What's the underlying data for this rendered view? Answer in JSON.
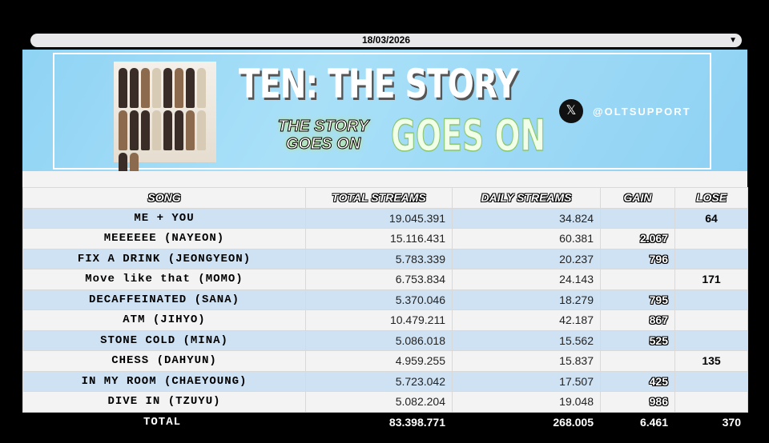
{
  "date_select": {
    "value": "18/03/2026"
  },
  "banner": {
    "title": "TEN: THE STORY",
    "subtitle": "GOES ON",
    "album_logo": "TWICE SPECIAL ALBUM THE STORY GOES ON",
    "social_icon": "x-logo-icon",
    "handle": "@OLTSUPPORT"
  },
  "table": {
    "headers": [
      "SONG",
      "TOTAL STREAMS",
      "DAILY STREAMS",
      "GAIN",
      "LOSE"
    ],
    "rows": [
      {
        "song": "ME + YOU",
        "total": "19.045.391",
        "daily": "34.824",
        "gain": "",
        "lose": "64"
      },
      {
        "song": "MEEEEEE (NAYEON)",
        "total": "15.116.431",
        "daily": "60.381",
        "gain": "2.067",
        "lose": ""
      },
      {
        "song": "FIX A DRINK (JEONGYEON)",
        "total": "5.783.339",
        "daily": "20.237",
        "gain": "796",
        "lose": ""
      },
      {
        "song": "Move like that (MOMO)",
        "total": "6.753.834",
        "daily": "24.143",
        "gain": "",
        "lose": "171"
      },
      {
        "song": "DECAFFEINATED (SANA)",
        "total": "5.370.046",
        "daily": "18.279",
        "gain": "795",
        "lose": ""
      },
      {
        "song": "ATM (JIHYO)",
        "total": "10.479.211",
        "daily": "42.187",
        "gain": "867",
        "lose": ""
      },
      {
        "song": "STONE COLD (MINA)",
        "total": "5.086.018",
        "daily": "15.562",
        "gain": "525",
        "lose": ""
      },
      {
        "song": "CHESS (DAHYUN)",
        "total": "4.959.255",
        "daily": "15.837",
        "gain": "",
        "lose": "135"
      },
      {
        "song": "IN MY ROOM (CHAEYOUNG)",
        "total": "5.723.042",
        "daily": "17.507",
        "gain": "425",
        "lose": ""
      },
      {
        "song": "DIVE IN (TZUYU)",
        "total": "5.082.204",
        "daily": "19.048",
        "gain": "986",
        "lose": ""
      }
    ],
    "total": {
      "label": "TOTAL",
      "total": "83.398.771",
      "daily": "268.005",
      "gain": "6.461",
      "lose": "370"
    }
  },
  "colors": {
    "row_alt": "#cfe2f3",
    "row": "#f3f3f3",
    "banner": "#8fd3f4"
  }
}
